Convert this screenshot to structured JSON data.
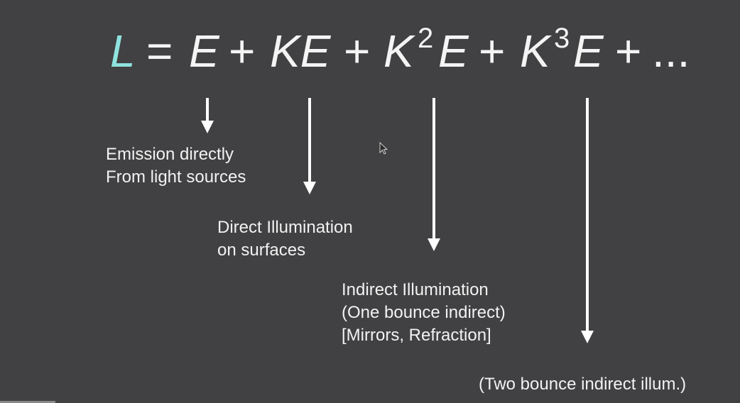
{
  "equation": {
    "lhs": "L",
    "equals": "=",
    "term1": "E",
    "plus": "+",
    "term2": "KE",
    "term3_base": "K",
    "term3_exp": "2",
    "term3_tail": "E",
    "term4_base": "K",
    "term4_exp": "3",
    "term4_tail": "E",
    "ellipsis": "..."
  },
  "annotations": [
    {
      "lines": [
        "Emission directly",
        "From light sources"
      ]
    },
    {
      "lines": [
        "Direct Illumination",
        "on surfaces"
      ]
    },
    {
      "lines": [
        "Indirect Illumination",
        "(One bounce indirect)",
        "[Mirrors, Refraction]"
      ]
    },
    {
      "lines": [
        "(Two bounce indirect illum.)"
      ]
    }
  ],
  "colors": {
    "background": "#414042",
    "lhs_accent": "#8fe3df",
    "text": "#f2f2f2"
  },
  "icons": {
    "cursor": "mouse-pointer-icon"
  }
}
